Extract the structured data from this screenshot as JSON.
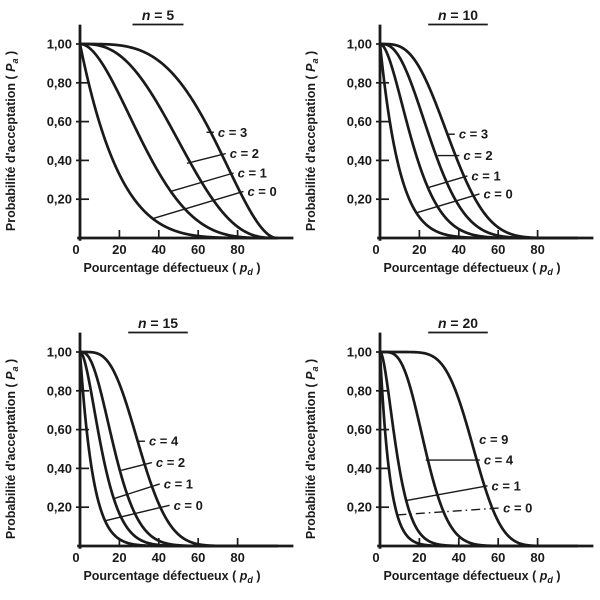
{
  "colors": {
    "ink": "#1a1a1a",
    "paper": "#ffffff"
  },
  "axes": {
    "ylabel_text": "Probabilité d'acceptation",
    "ylabel_symbol": "P",
    "ylabel_subscript": "a",
    "xlabel_text": "Pourcentage défectueux",
    "xlabel_symbol": "p",
    "xlabel_subscript": "d",
    "x_ticks": [
      {
        "value": 0,
        "label": "0"
      },
      {
        "value": 20,
        "label": "20"
      },
      {
        "value": 40,
        "label": "40"
      },
      {
        "value": 60,
        "label": "60"
      },
      {
        "value": 80,
        "label": "80"
      }
    ],
    "y_ticks": [
      {
        "value": 1.0,
        "label": "1,00"
      },
      {
        "value": 0.8,
        "label": "0,80"
      },
      {
        "value": 0.6,
        "label": "0,60"
      },
      {
        "value": 0.4,
        "label": "0,40"
      },
      {
        "value": 0.2,
        "label": "0,20"
      }
    ],
    "xlim": [
      0,
      105
    ],
    "ylim": [
      0,
      1.05
    ]
  },
  "chart_data": [
    {
      "type": "line",
      "title": "n = 5",
      "n": 5,
      "model": "binomial_cdf: Pa = P(X <= c), X ~ Binomial(n, pd/100)",
      "xlabel": "Pourcentage défectueux (pd)",
      "ylabel": "Probabilité d'acceptation (Pa)",
      "series": [
        {
          "label": "c = 0",
          "c": 0
        },
        {
          "label": "c = 1",
          "c": 1
        },
        {
          "label": "c = 2",
          "c": 2
        },
        {
          "label": "c = 3",
          "c": 3
        }
      ],
      "annotations": [
        {
          "label": "c = 3",
          "x": 69.5,
          "y": 0.545,
          "leader_to": [
            64.2,
            0.545
          ],
          "leader_style": "solid"
        },
        {
          "label": "c = 2",
          "x": 75.5,
          "y": 0.435,
          "leader_to": [
            54.3,
            0.385
          ],
          "leader_style": "solid"
        },
        {
          "label": "c = 1",
          "x": 79.5,
          "y": 0.335,
          "leader_to": [
            46.0,
            0.24
          ],
          "leader_style": "solid"
        },
        {
          "label": "c = 0",
          "x": 84.5,
          "y": 0.24,
          "leader_to": [
            37.0,
            0.1
          ],
          "leader_style": "solid"
        }
      ]
    },
    {
      "type": "line",
      "title": "n = 10",
      "n": 10,
      "model": "binomial_cdf: Pa = P(X <= c), X ~ Binomial(n, pd/100)",
      "xlabel": "Pourcentage défectueux (pd)",
      "ylabel": "Probabilité d'acceptation (Pa)",
      "series": [
        {
          "label": "c = 0",
          "c": 0
        },
        {
          "label": "c = 1",
          "c": 1
        },
        {
          "label": "c = 2",
          "c": 2
        },
        {
          "label": "c = 3",
          "c": 3
        }
      ],
      "annotations": [
        {
          "label": "c = 3",
          "x": 39.5,
          "y": 0.535,
          "leader_to": [
            34.6,
            0.535
          ],
          "leader_style": "solid"
        },
        {
          "label": "c = 2",
          "x": 41.8,
          "y": 0.425,
          "leader_to": [
            29.3,
            0.425
          ],
          "leader_style": "solid"
        },
        {
          "label": "c = 1",
          "x": 45.9,
          "y": 0.32,
          "leader_to": [
            24.5,
            0.26
          ],
          "leader_style": "solid"
        },
        {
          "label": "c = 0",
          "x": 52.0,
          "y": 0.227,
          "leader_to": [
            18.5,
            0.13
          ],
          "leader_style": "solid"
        }
      ]
    },
    {
      "type": "line",
      "title": "n = 15",
      "n": 15,
      "model": "binomial_cdf: Pa = P(X <= c), X ~ Binomial(n, pd/100)",
      "xlabel": "Pourcentage défectueux (pd)",
      "ylabel": "Probabilité d'acceptation (Pa)",
      "series": [
        {
          "label": "c = 0",
          "c": 0
        },
        {
          "label": "c = 1",
          "c": 1
        },
        {
          "label": "c = 2",
          "c": 2
        },
        {
          "label": "c = 4",
          "c": 4
        }
      ],
      "annotations": [
        {
          "label": "c = 4",
          "x": 34.5,
          "y": 0.54,
          "leader_to": [
            28.7,
            0.54
          ],
          "leader_style": "solid"
        },
        {
          "label": "c = 2",
          "x": 38.0,
          "y": 0.43,
          "leader_to": [
            21.0,
            0.39
          ],
          "leader_style": "solid"
        },
        {
          "label": "c = 1",
          "x": 42.0,
          "y": 0.32,
          "leader_to": [
            17.5,
            0.245
          ],
          "leader_style": "solid"
        },
        {
          "label": "c = 0",
          "x": 47.0,
          "y": 0.21,
          "leader_to": [
            12.7,
            0.13
          ],
          "leader_style": "solid"
        }
      ]
    },
    {
      "type": "line",
      "title": "n = 20",
      "n": 20,
      "model": "binomial_cdf: Pa = P(X <= c), X ~ Binomial(n, pd/100)",
      "xlabel": "Pourcentage défectueux (pd)",
      "ylabel": "Probabilité d'acceptation (Pa)",
      "series": [
        {
          "label": "c = 0",
          "c": 0
        },
        {
          "label": "c = 1",
          "c": 1
        },
        {
          "label": "c = 4",
          "c": 4
        },
        {
          "label": "c = 9",
          "c": 9
        }
      ],
      "annotations": [
        {
          "label": "c = 9",
          "x": 49.8,
          "y": 0.55,
          "leader_to": [
            48.2,
            0.55
          ],
          "leader_style": "solid"
        },
        {
          "label": "c = 4",
          "x": 52.2,
          "y": 0.443,
          "leader_to": [
            23.2,
            0.443
          ],
          "leader_style": "solid"
        },
        {
          "label": "c = 1",
          "x": 56.1,
          "y": 0.31,
          "leader_to": [
            13.6,
            0.235
          ],
          "leader_style": "solid"
        },
        {
          "label": "c = 0",
          "x": 62.0,
          "y": 0.196,
          "leader_to": [
            8.8,
            0.16
          ],
          "leader_style": "dash-dot"
        }
      ]
    }
  ]
}
